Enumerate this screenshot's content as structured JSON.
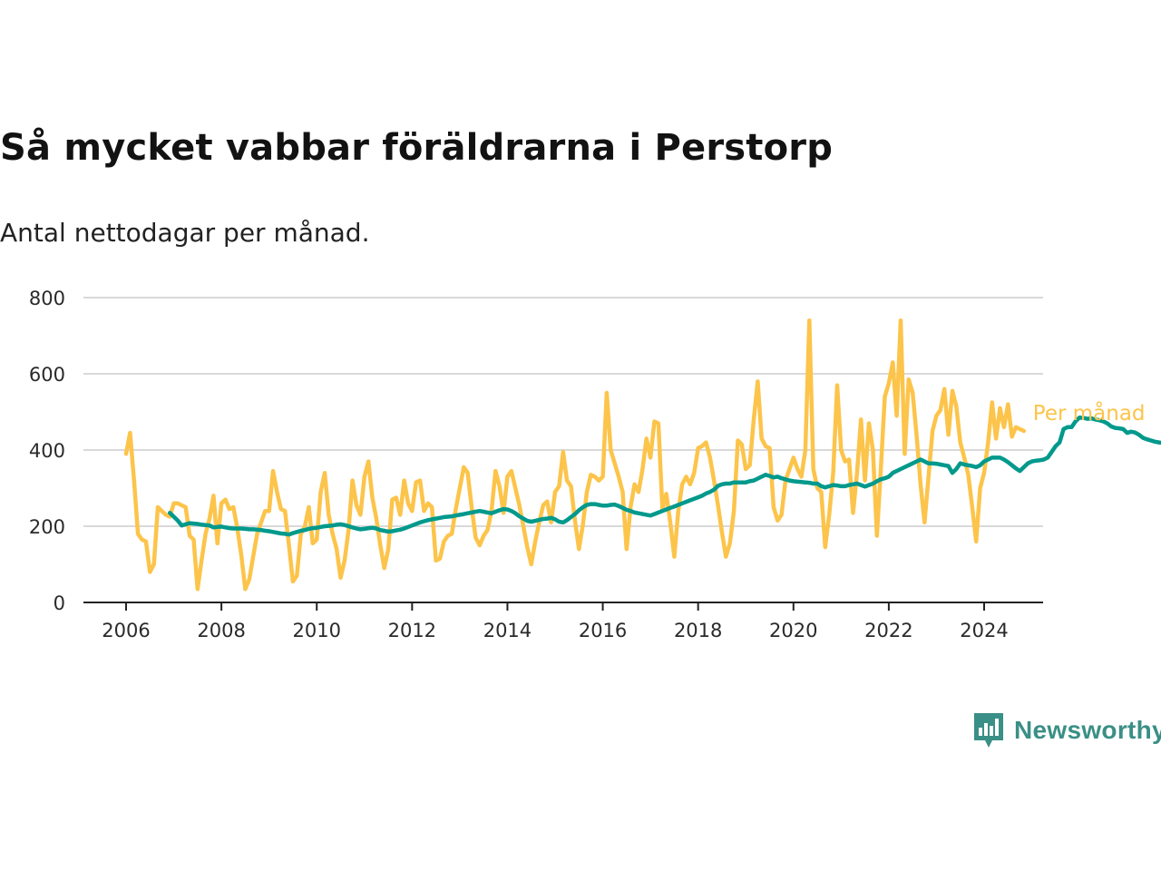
{
  "title": "Så mycket vabbar föräldrarna i Perstorp",
  "subtitle": "Antal nettodagar per månad.",
  "brand": {
    "name": "Newsworthy",
    "color": "#3a8f86",
    "icon": "chart-bubble-icon"
  },
  "colors": {
    "monthly": "#fcc44a",
    "trend": "#00998c",
    "grid": "#d9d9d9",
    "axis": "#222222"
  },
  "chart_data": {
    "type": "line",
    "title": "Så mycket vabbar föräldrarna i Perstorp",
    "subtitle": "Antal nettodagar per månad.",
    "xlabel": "",
    "ylabel": "",
    "ylim": [
      0,
      800
    ],
    "y_ticks": [
      0,
      200,
      400,
      600,
      800
    ],
    "y_tick_labels": [
      "0",
      "200",
      "400",
      "600",
      "800"
    ],
    "xlim": [
      "2005-07",
      "2025-07"
    ],
    "x_ticks": [
      "2006-01",
      "2008-01",
      "2010-01",
      "2012-01",
      "2014-01",
      "2016-01",
      "2018-01",
      "2020-01",
      "2022-01",
      "2024-01"
    ],
    "x_tick_labels": [
      "2006",
      "2008",
      "2010",
      "2012",
      "2014",
      "2016",
      "2018",
      "2020",
      "2022",
      "2024"
    ],
    "grid": true,
    "legend": "inline labels at right end of lines",
    "series": [
      {
        "name": "Per månad",
        "start": "2006-01",
        "values": [
          390,
          445,
          320,
          180,
          165,
          160,
          80,
          100,
          250,
          240,
          230,
          225,
          260,
          260,
          255,
          250,
          175,
          165,
          35,
          110,
          180,
          220,
          280,
          155,
          260,
          270,
          245,
          250,
          195,
          125,
          35,
          60,
          120,
          180,
          210,
          240,
          240,
          345,
          290,
          245,
          240,
          150,
          55,
          70,
          180,
          200,
          250,
          155,
          165,
          290,
          340,
          230,
          180,
          140,
          65,
          110,
          190,
          320,
          255,
          230,
          330,
          370,
          275,
          220,
          150,
          90,
          140,
          270,
          275,
          230,
          320,
          260,
          240,
          315,
          320,
          240,
          260,
          250,
          110,
          115,
          160,
          175,
          180,
          245,
          300,
          355,
          340,
          250,
          170,
          150,
          175,
          190,
          240,
          345,
          305,
          235,
          330,
          345,
          300,
          255,
          200,
          145,
          100,
          160,
          210,
          255,
          265,
          210,
          290,
          305,
          395,
          320,
          305,
          215,
          140,
          205,
          290,
          335,
          330,
          320,
          330,
          550,
          400,
          365,
          330,
          290,
          140,
          250,
          310,
          290,
          350,
          430,
          380,
          475,
          470,
          245,
          285,
          210,
          120,
          240,
          310,
          330,
          310,
          340,
          405,
          410,
          420,
          380,
          320,
          255,
          185,
          120,
          155,
          240,
          425,
          415,
          350,
          360,
          480,
          580,
          430,
          410,
          405,
          250,
          215,
          230,
          320,
          350,
          380,
          350,
          330,
          400,
          740,
          350,
          300,
          290,
          145,
          230,
          340,
          570,
          400,
          370,
          375,
          235,
          340,
          480,
          320,
          470,
          400,
          175,
          350,
          540,
          575,
          630,
          490,
          740,
          390,
          585,
          550,
          440,
          310,
          210,
          330,
          450,
          490,
          505,
          560,
          440,
          555,
          515,
          420,
          380,
          335,
          250,
          160,
          300,
          340,
          420,
          525,
          430,
          510,
          460,
          520,
          435,
          460,
          455,
          450
        ]
      },
      {
        "name": "Trend",
        "start": "2006-12",
        "values": [
          235,
          225,
          215,
          202,
          205,
          208,
          207,
          206,
          204,
          203,
          202,
          197,
          198,
          199,
          197,
          195,
          194,
          194,
          194,
          193,
          192,
          192,
          191,
          190,
          188,
          187,
          185,
          183,
          181,
          180,
          178,
          182,
          185,
          188,
          190,
          193,
          195,
          196,
          198,
          200,
          201,
          202,
          204,
          205,
          203,
          200,
          197,
          194,
          192,
          193,
          195,
          196,
          194,
          190,
          188,
          186,
          187,
          189,
          191,
          194,
          198,
          202,
          206,
          210,
          213,
          216,
          218,
          220,
          222,
          224,
          225,
          226,
          228,
          230,
          232,
          234,
          236,
          238,
          240,
          238,
          236,
          234,
          238,
          242,
          245,
          244,
          240,
          234,
          226,
          220,
          214,
          212,
          214,
          217,
          219,
          220,
          222,
          218,
          212,
          210,
          216,
          224,
          232,
          242,
          250,
          256,
          258,
          258,
          256,
          254,
          254,
          256,
          257,
          253,
          248,
          243,
          240,
          236,
          234,
          232,
          230,
          228,
          232,
          236,
          240,
          244,
          248,
          252,
          256,
          260,
          264,
          268,
          272,
          276,
          280,
          286,
          290,
          296,
          306,
          310,
          312,
          312,
          315,
          315,
          315,
          315,
          318,
          320,
          325,
          330,
          335,
          332,
          328,
          330,
          326,
          323,
          320,
          318,
          317,
          316,
          315,
          314,
          312,
          312,
          305,
          302,
          305,
          308,
          307,
          305,
          305,
          308,
          310,
          312,
          308,
          304,
          308,
          312,
          318,
          323,
          326,
          330,
          340,
          345,
          350,
          355,
          360,
          365,
          370,
          375,
          370,
          365,
          365,
          364,
          362,
          360,
          358,
          340,
          350,
          365,
          362,
          360,
          358,
          355,
          360,
          370,
          375,
          380,
          380,
          380,
          375,
          368,
          360,
          352,
          345,
          355,
          365,
          370,
          372,
          373,
          375,
          380,
          395,
          410,
          420,
          455,
          460,
          460,
          475,
          485,
          484,
          482,
          483,
          480,
          478,
          475,
          470,
          462,
          458,
          457,
          455,
          445,
          448,
          446,
          440,
          432,
          428,
          425,
          422,
          420,
          418,
          415,
          410,
          405,
          402,
          400,
          398,
          396,
          398,
          394,
          388,
          392,
          396,
          400
        ]
      }
    ]
  }
}
